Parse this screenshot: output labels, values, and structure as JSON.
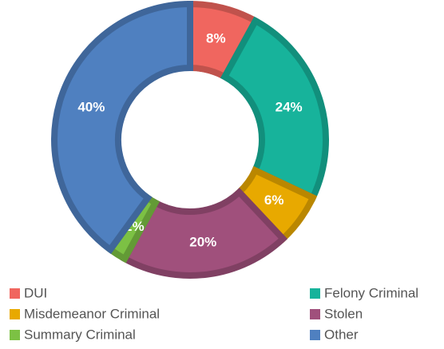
{
  "chart_data": {
    "type": "donut",
    "categories": [
      "DUI",
      "Felony Criminal",
      "Misdemeanor Criminal",
      "Stolen",
      "Summary Criminal",
      "Other"
    ],
    "values": [
      8,
      24,
      6,
      20,
      2,
      40
    ],
    "value_labels": [
      "8%",
      "24%",
      "6%",
      "20%",
      "2%",
      "40%"
    ],
    "colors": [
      "#f0665f",
      "#17b39b",
      "#e8a900",
      "#a0507c",
      "#7cc144",
      "#4f80c0"
    ]
  }
}
